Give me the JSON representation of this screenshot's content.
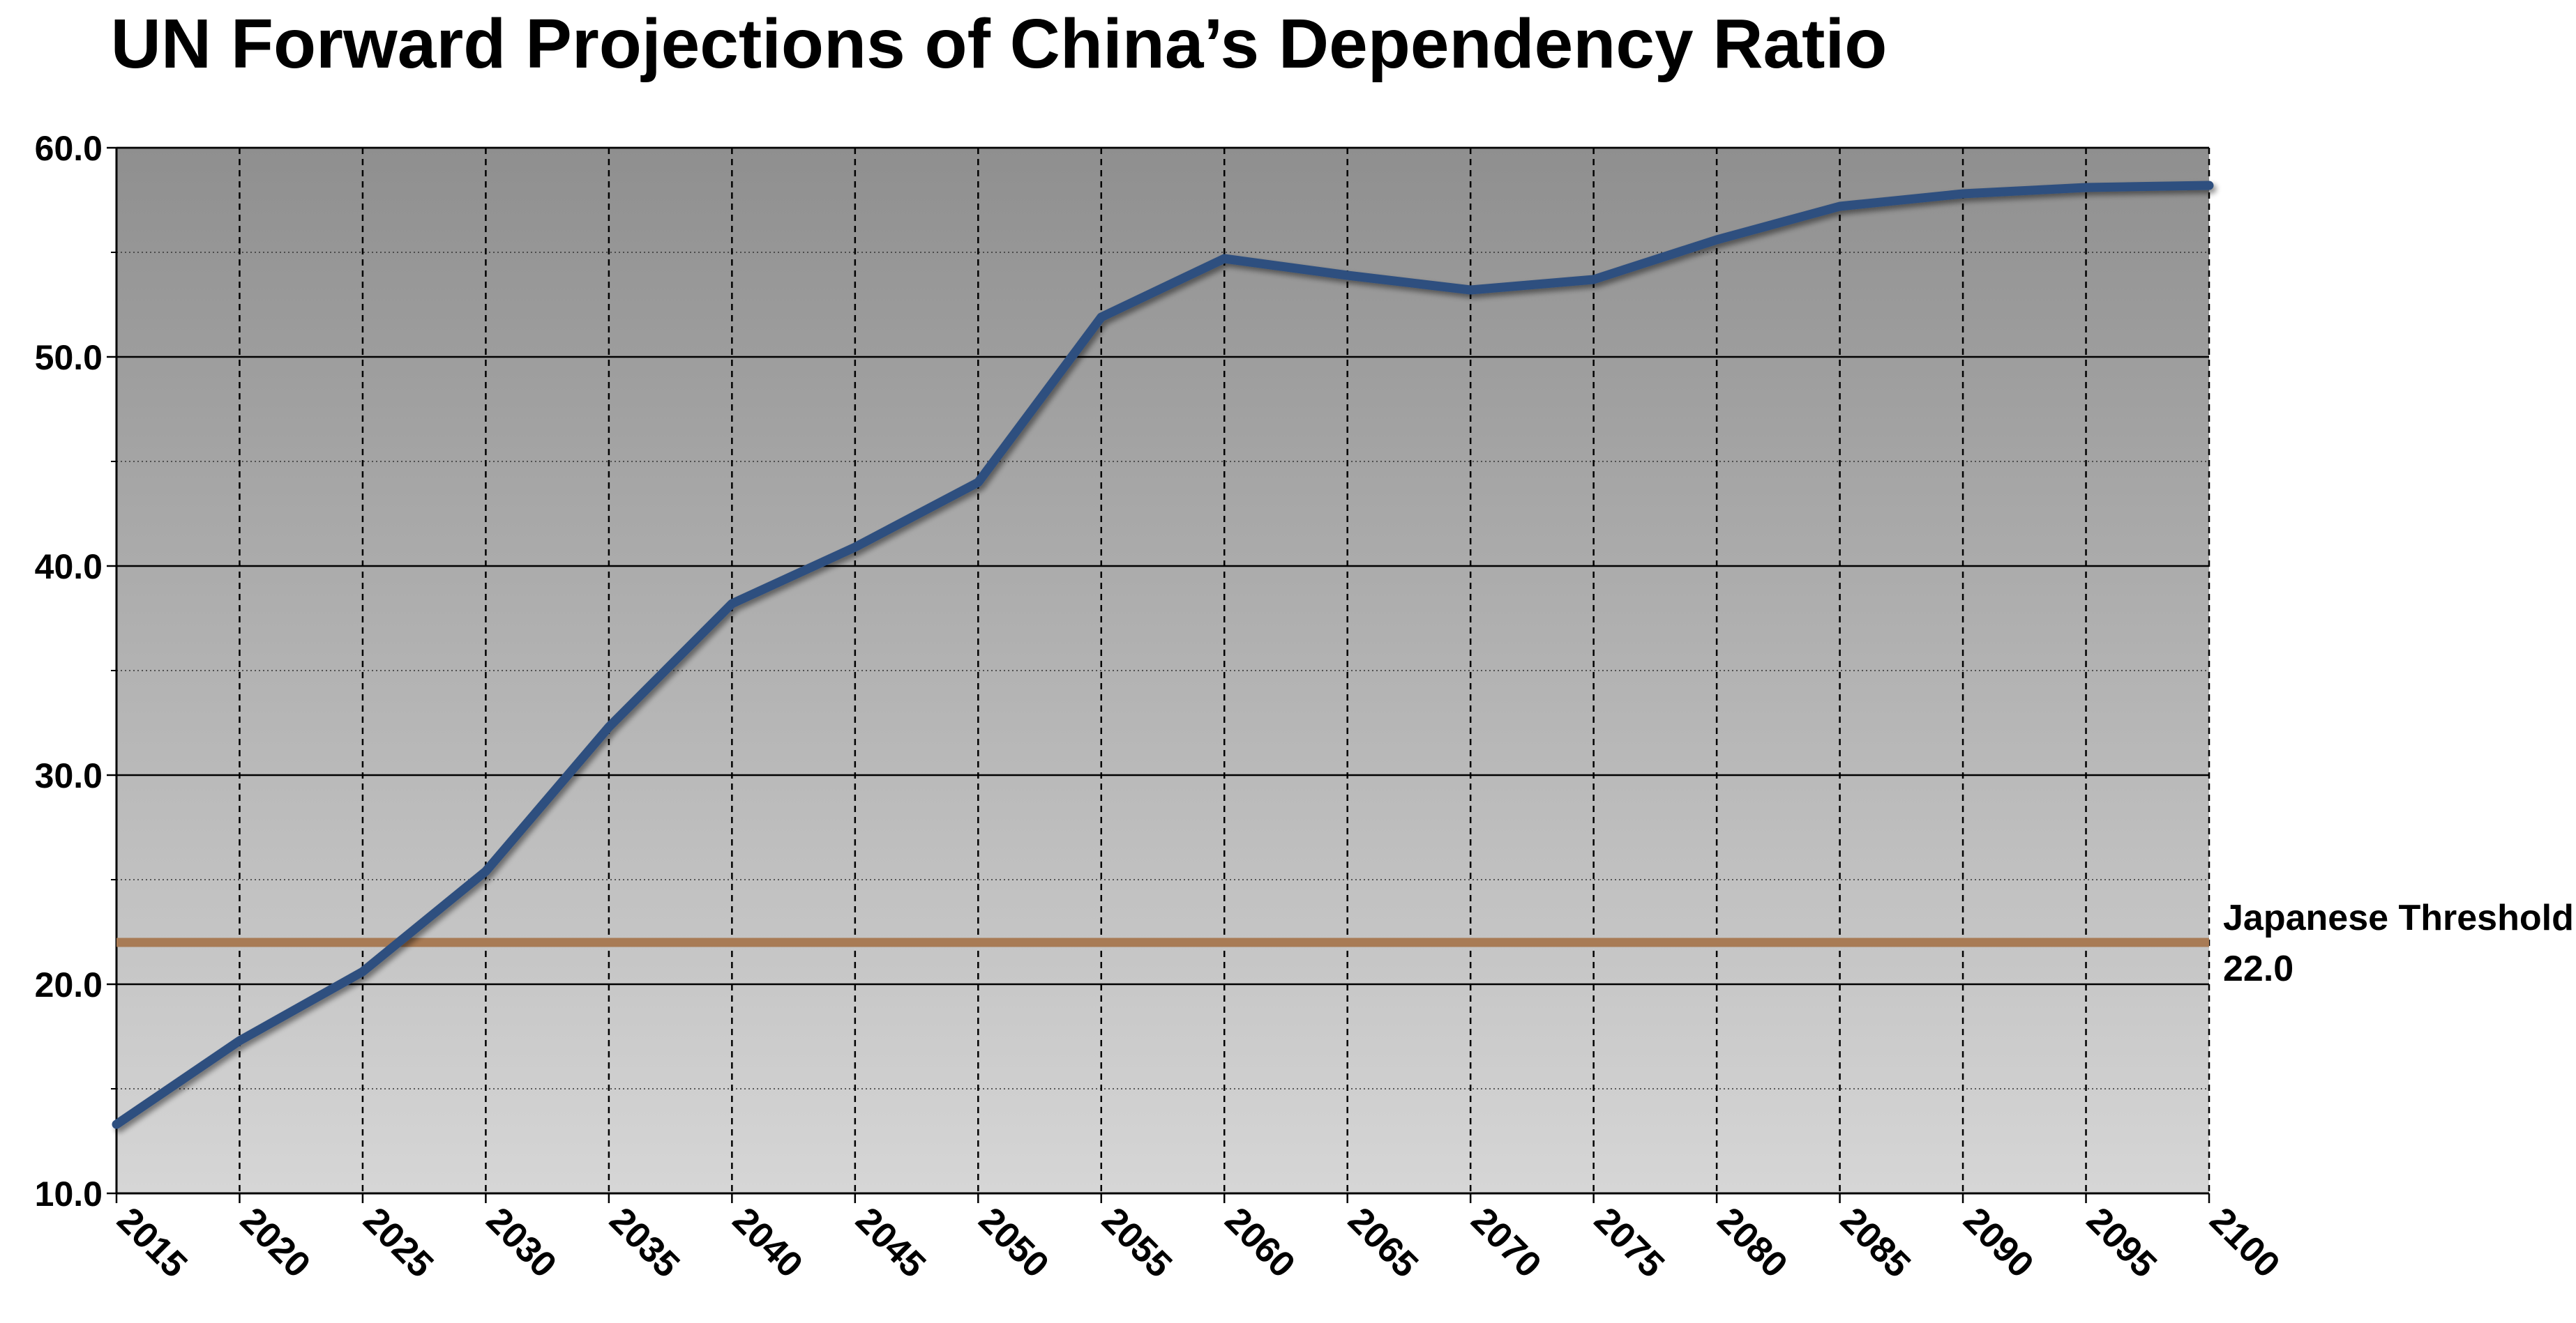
{
  "chart_data": {
    "type": "line",
    "title": "UN Forward Projections of China’s Dependency Ratio",
    "xlabel": "",
    "ylabel": "",
    "x": [
      2015,
      2020,
      2025,
      2030,
      2035,
      2040,
      2045,
      2050,
      2055,
      2060,
      2065,
      2070,
      2075,
      2080,
      2085,
      2090,
      2095,
      2100
    ],
    "x_tick_labels": [
      "2015",
      "2020",
      "2025",
      "2030",
      "2035",
      "2040",
      "2045",
      "2050",
      "2055",
      "2060",
      "2065",
      "2070",
      "2075",
      "2080",
      "2085",
      "2090",
      "2095",
      "2100"
    ],
    "series": [
      {
        "values": [
          13.3,
          17.3,
          20.6,
          25.4,
          32.3,
          38.2,
          40.9,
          44.0,
          51.9,
          54.7,
          53.9,
          53.2,
          53.7,
          55.6,
          57.2,
          57.8,
          58.1,
          58.2
        ],
        "color": "#2f4f7f"
      }
    ],
    "threshold": {
      "label": "Japanese Threshold",
      "value": 22.0,
      "value_label": "22.0",
      "color": "#a87b55"
    },
    "ylim": [
      10,
      60
    ],
    "y_ticks": [
      10,
      20,
      30,
      40,
      50,
      60
    ],
    "y_tick_labels": [
      "10.0",
      "20.0",
      "30.0",
      "40.0",
      "50.0",
      "60.0"
    ],
    "xlim": [
      2015,
      2100
    ],
    "grid": true,
    "legend": "none",
    "background_gradient": [
      "#8f8f8f",
      "#d6d6d6"
    ]
  }
}
